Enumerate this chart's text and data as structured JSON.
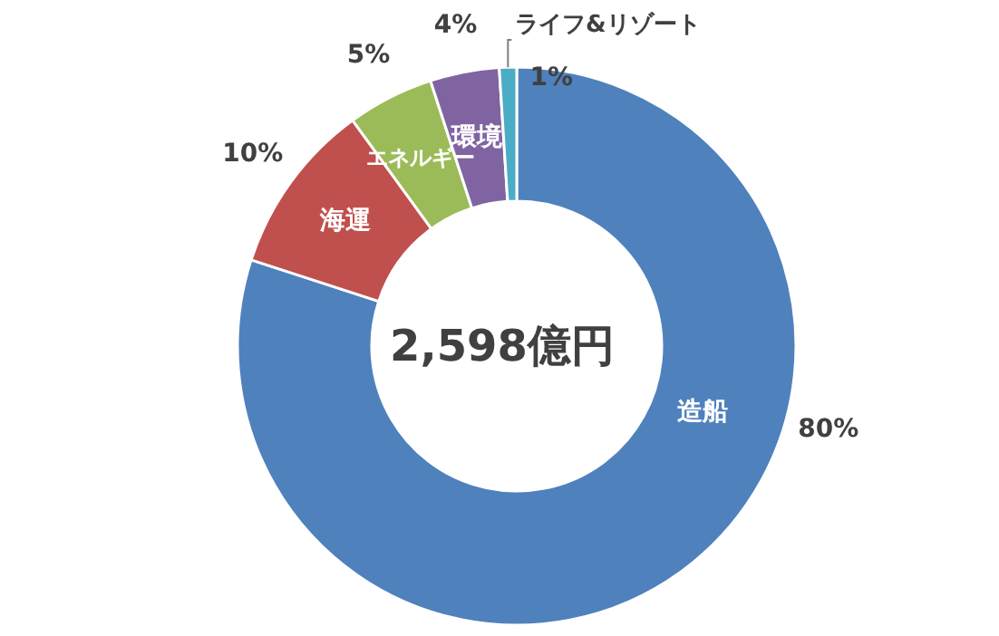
{
  "chart_data": {
    "type": "donut",
    "categories": [
      "造船",
      "海運",
      "エネルギー",
      "環境",
      "ライフ&リゾート"
    ],
    "values": [
      80,
      10,
      5,
      4,
      1
    ],
    "value_labels": [
      "80%",
      "10%",
      "5%",
      "4%",
      "1%"
    ],
    "colors": [
      "#4f81bd",
      "#c0504d",
      "#9bbb59",
      "#8064a2",
      "#4bacc6"
    ],
    "annotations": [
      "2,598億円"
    ]
  }
}
